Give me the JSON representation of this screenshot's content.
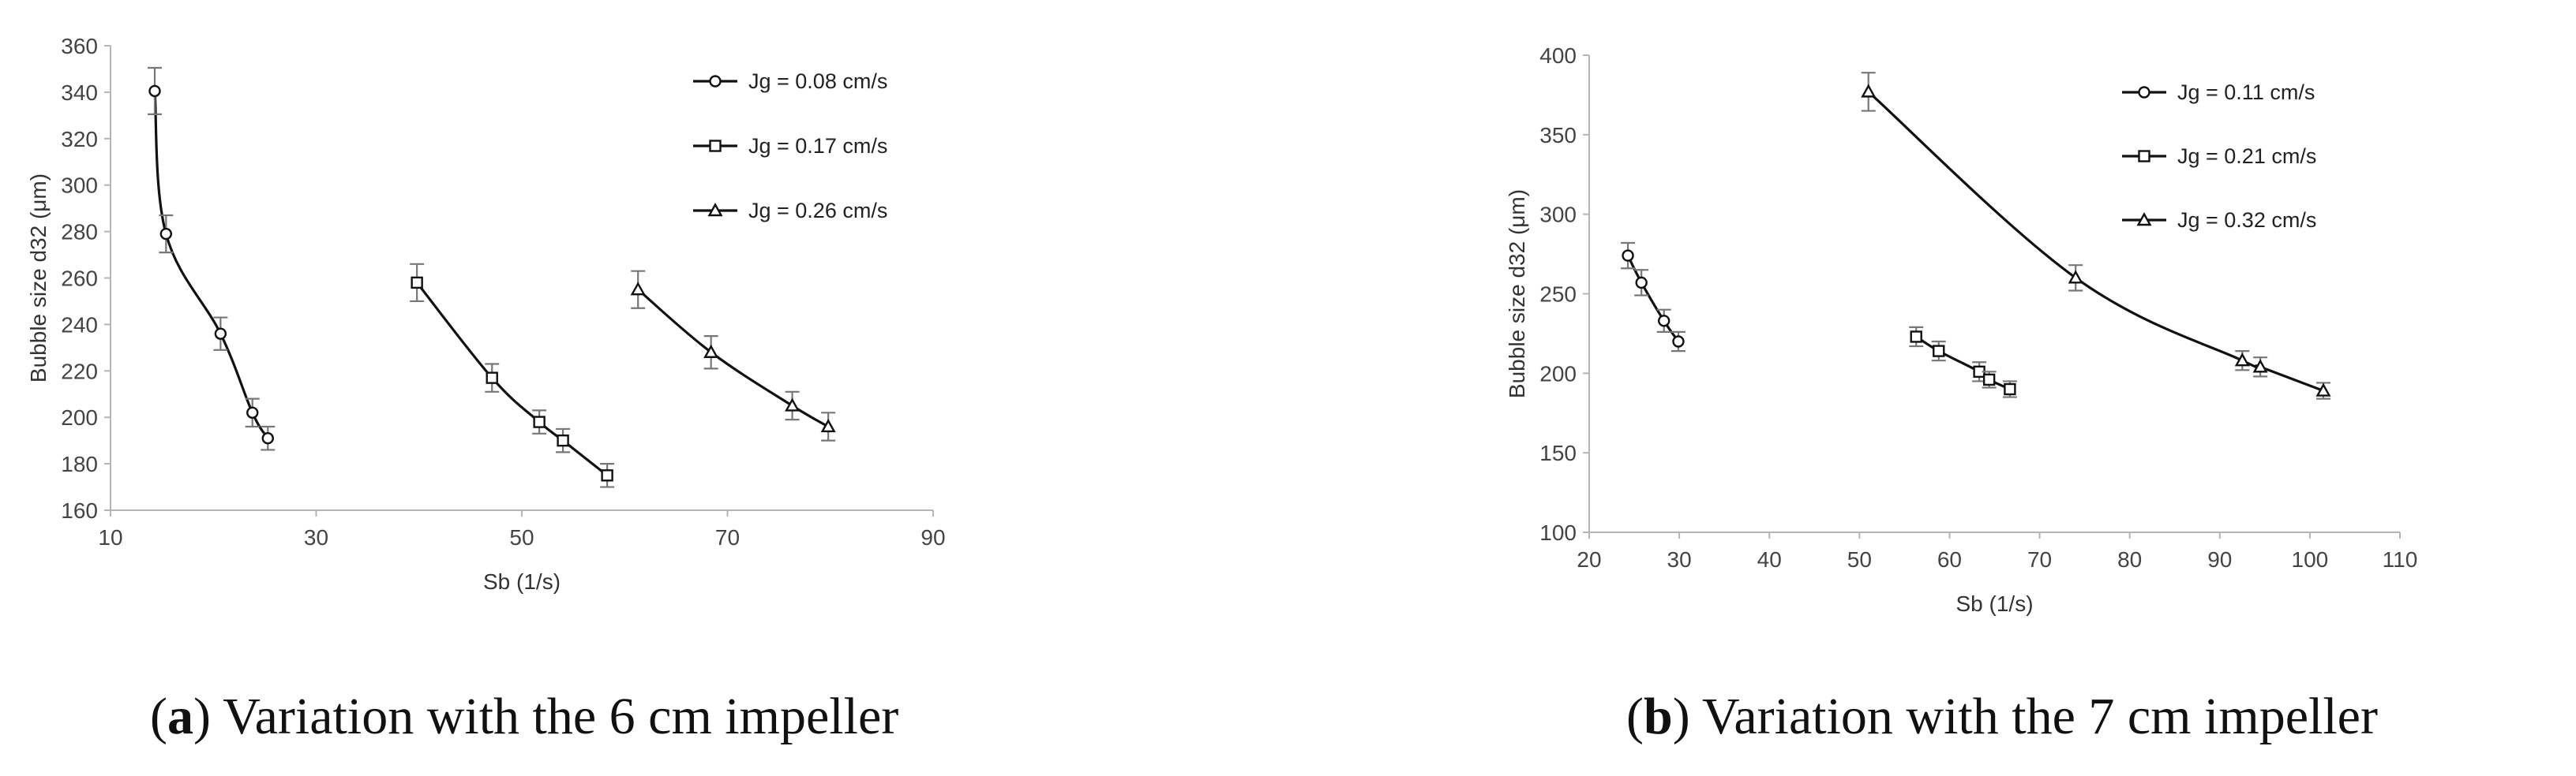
{
  "chart_data": [
    {
      "type": "line",
      "caption_letter": "a",
      "caption_text": "Variation with the 6 cm impeller",
      "xlabel": "Sb (1/s)",
      "ylabel": "Bubble size d32 (μm)",
      "xlim": [
        10,
        90
      ],
      "ylim": [
        160,
        360
      ],
      "xticks": [
        "10",
        "30",
        "50",
        "70",
        "90"
      ],
      "yticks": [
        "160",
        "180",
        "200",
        "220",
        "240",
        "260",
        "280",
        "300",
        "320",
        "340",
        "360"
      ],
      "grid": false,
      "legend_position": "top-right",
      "series": [
        {
          "name": "Jg = 0.08 cm/s",
          "marker": "circle",
          "x": [
            14.3,
            15.4,
            20.7,
            23.8,
            25.3
          ],
          "y": [
            340.5,
            279.0,
            236.0,
            202.0,
            191.0
          ],
          "err": [
            10,
            8,
            7,
            6,
            5
          ]
        },
        {
          "name": "Jg = 0.17 cm/s",
          "marker": "square",
          "x": [
            39.8,
            47.1,
            51.7,
            54.0,
            58.3
          ],
          "y": [
            258.0,
            217.0,
            198.0,
            190.0,
            175.0
          ],
          "err": [
            8,
            6,
            5,
            5,
            5
          ]
        },
        {
          "name": "Jg = 0.26 cm/s",
          "marker": "triangle",
          "x": [
            61.3,
            68.4,
            76.3,
            79.8
          ],
          "y": [
            255.0,
            228.0,
            205.0,
            196.0
          ],
          "err": [
            8,
            7,
            6,
            6
          ]
        }
      ]
    },
    {
      "type": "line",
      "caption_letter": "b",
      "caption_text": "Variation with the 7 cm impeller",
      "xlabel": "Sb (1/s)",
      "ylabel": "Bubble size d32 (μm)",
      "xlim": [
        20,
        110
      ],
      "ylim": [
        100,
        400
      ],
      "xticks": [
        "20",
        "30",
        "40",
        "50",
        "60",
        "70",
        "80",
        "90",
        "100",
        "110"
      ],
      "yticks": [
        "100",
        "150",
        "200",
        "250",
        "300",
        "350",
        "400"
      ],
      "grid": false,
      "legend_position": "top-right",
      "series": [
        {
          "name": "Jg = 0.11 cm/s",
          "marker": "circle",
          "x": [
            24.3,
            25.8,
            28.3,
            29.9
          ],
          "y": [
            274.0,
            257.0,
            233.0,
            220.0
          ],
          "err": [
            8,
            8,
            7,
            6
          ]
        },
        {
          "name": "Jg = 0.21 cm/s",
          "marker": "square",
          "x": [
            56.3,
            58.8,
            63.3,
            64.4,
            66.7
          ],
          "y": [
            223.0,
            214.0,
            201.0,
            196.0,
            190.0
          ],
          "err": [
            6,
            6,
            6,
            5,
            5
          ]
        },
        {
          "name": "Jg = 0.32 cm/s",
          "marker": "triangle",
          "x": [
            51.0,
            74.0,
            92.5,
            94.5,
            101.5
          ],
          "y": [
            377.0,
            260.0,
            208.0,
            204.0,
            189.0
          ],
          "err": [
            12,
            8,
            6,
            6,
            5
          ]
        }
      ]
    }
  ]
}
